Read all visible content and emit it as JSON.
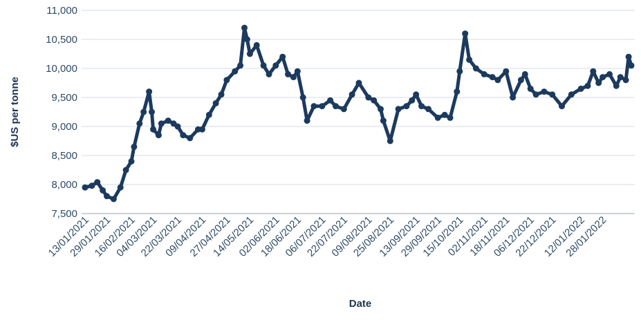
{
  "chart_data": {
    "type": "line",
    "title": "",
    "xlabel": "Date",
    "ylabel": "$US per tonne",
    "ylim": [
      7500,
      11000
    ],
    "y_ticks": [
      7500,
      8000,
      8500,
      9000,
      9500,
      10000,
      10500,
      11000
    ],
    "y_tick_labels": [
      "7,500",
      "8,000",
      "8,500",
      "9,000",
      "9,500",
      "10,000",
      "10,500",
      "11,000"
    ],
    "x_ticks": [
      "13/01/2021",
      "29/01/2021",
      "16/02/2021",
      "04/03/2021",
      "22/03/2021",
      "09/04/2021",
      "27/04/2021",
      "14/05/2021",
      "02/06/2021",
      "18/06/2021",
      "06/07/2021",
      "22/07/2021",
      "09/08/2021",
      "25/08/2021",
      "13/09/2021",
      "29/09/2021",
      "15/10/2021",
      "02/11/2021",
      "18/11/2021",
      "06/12/2021",
      "22/12/2021",
      "12/01/2022",
      "28/01/2022"
    ],
    "grid": true,
    "legend": "none",
    "color": "#1c3a5e",
    "series": [
      {
        "x": [
          "13/01/2021",
          "18/01/2021",
          "22/01/2021",
          "26/01/2021",
          "29/01/2021",
          "03/02/2021",
          "08/02/2021",
          "12/02/2021",
          "16/02/2021",
          "18/02/2021",
          "22/02/2021",
          "25/02/2021",
          "01/03/2021",
          "03/03/2021",
          "04/03/2021",
          "08/03/2021",
          "10/03/2021",
          "15/03/2021",
          "19/03/2021",
          "22/03/2021",
          "26/03/2021",
          "31/03/2021",
          "06/04/2021",
          "09/04/2021",
          "14/04/2021",
          "19/04/2021",
          "23/04/2021",
          "27/04/2021",
          "03/05/2021",
          "07/05/2021",
          "10/05/2021",
          "12/05/2021",
          "14/05/2021",
          "19/05/2021",
          "24/05/2021",
          "28/05/2021",
          "02/06/2021",
          "07/06/2021",
          "11/06/2021",
          "15/06/2021",
          "18/06/2021",
          "22/06/2021",
          "25/06/2021",
          "30/06/2021",
          "06/07/2021",
          "12/07/2021",
          "16/07/2021",
          "22/07/2021",
          "28/07/2021",
          "02/08/2021",
          "09/08/2021",
          "13/08/2021",
          "18/08/2021",
          "20/08/2021",
          "25/08/2021",
          "31/08/2021",
          "06/09/2021",
          "10/09/2021",
          "13/09/2021",
          "17/09/2021",
          "22/09/2021",
          "29/09/2021",
          "04/10/2021",
          "08/10/2021",
          "13/10/2021",
          "15/10/2021",
          "19/10/2021",
          "22/10/2021",
          "27/10/2021",
          "02/11/2021",
          "08/11/2021",
          "12/11/2021",
          "18/11/2021",
          "23/11/2021",
          "29/11/2021",
          "02/12/2021",
          "06/12/2021",
          "10/12/2021",
          "16/12/2021",
          "22/12/2021",
          "29/12/2021",
          "05/01/2022",
          "12/01/2022",
          "17/01/2022",
          "21/01/2022",
          "25/01/2022",
          "28/01/2022",
          "02/02/2022",
          "07/02/2022",
          "10/02/2022",
          "14/02/2022",
          "16/02/2022",
          "18/02/2022"
        ],
        "y": [
          7950,
          7980,
          8040,
          7900,
          7800,
          7750,
          7950,
          8250,
          8400,
          8650,
          9050,
          9250,
          9600,
          9250,
          8950,
          8850,
          9050,
          9100,
          9050,
          9000,
          8850,
          8800,
          8950,
          8950,
          9200,
          9400,
          9550,
          9800,
          9950,
          10050,
          10700,
          10500,
          10250,
          10400,
          10050,
          9900,
          10050,
          10200,
          9900,
          9850,
          9950,
          9500,
          9100,
          9350,
          9350,
          9450,
          9350,
          9300,
          9550,
          9750,
          9500,
          9450,
          9300,
          9100,
          8750,
          9300,
          9350,
          9450,
          9550,
          9350,
          9300,
          9150,
          9200,
          9150,
          9600,
          9950,
          10600,
          10150,
          10000,
          9900,
          9850,
          9800,
          9950,
          9500,
          9800,
          9900,
          9650,
          9550,
          9600,
          9550,
          9350,
          9550,
          9650,
          9700,
          9950,
          9750,
          9850,
          9900,
          9700,
          9850,
          9800,
          10200,
          10050
        ]
      }
    ]
  }
}
